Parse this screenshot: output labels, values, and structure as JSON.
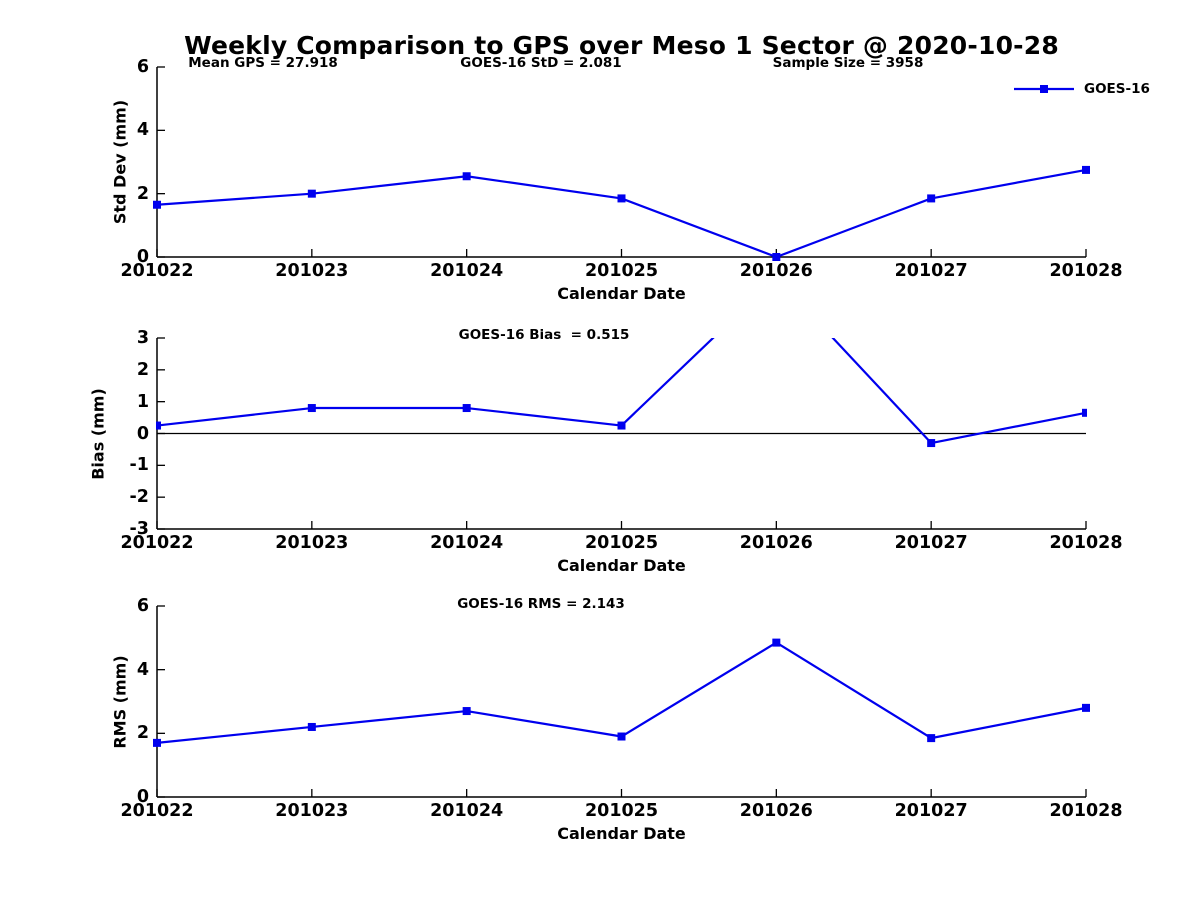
{
  "title": "Weekly Comparison to GPS over Meso 1 Sector @ 2020-10-28",
  "legend": {
    "label": "GOES-16",
    "position": "top-right-of-first-plot"
  },
  "colors": {
    "series": "#0000EE",
    "axis": "#000000",
    "zero_line": "#000000",
    "background": "#ffffff"
  },
  "x_axis": {
    "label": "Calendar Date",
    "ticks": [
      "201022",
      "201023",
      "201024",
      "201025",
      "201026",
      "201027",
      "201028"
    ]
  },
  "chart_data": [
    {
      "type": "line",
      "ylabel": "Std Dev (mm)",
      "xlabel": "Calendar Date",
      "x": [
        "201022",
        "201023",
        "201024",
        "201025",
        "201026",
        "201027",
        "201028"
      ],
      "series": [
        {
          "name": "GOES-16",
          "values": [
            1.65,
            2.0,
            2.55,
            1.85,
            0.0,
            1.85,
            2.75
          ]
        }
      ],
      "annotations": [
        "Mean GPS = 27.918",
        "GOES-16 StD = 2.081",
        "Sample Size = 3958"
      ],
      "ylim": [
        0,
        6
      ],
      "yticks": [
        0,
        2,
        4,
        6
      ],
      "grid": false,
      "legend_visible": true
    },
    {
      "type": "line",
      "ylabel": "Bias (mm)",
      "xlabel": "Calendar Date",
      "x": [
        "201022",
        "201023",
        "201024",
        "201025",
        "201026",
        "201027",
        "201028"
      ],
      "series": [
        {
          "name": "GOES-16",
          "values": [
            0.25,
            0.8,
            0.8,
            0.25,
            4.9,
            -0.3,
            0.65
          ]
        }
      ],
      "annotations": [
        "GOES-16 Bias  = 0.515"
      ],
      "ylim": [
        -3,
        3
      ],
      "yticks": [
        -3,
        -2,
        -1,
        0,
        1,
        2,
        3
      ],
      "zero_line": true,
      "clip_to_ylim": true,
      "grid": false,
      "legend_visible": false
    },
    {
      "type": "line",
      "ylabel": "RMS (mm)",
      "xlabel": "Calendar Date",
      "x": [
        "201022",
        "201023",
        "201024",
        "201025",
        "201026",
        "201027",
        "201028"
      ],
      "series": [
        {
          "name": "GOES-16",
          "values": [
            1.7,
            2.2,
            2.7,
            1.9,
            4.85,
            1.85,
            2.8
          ]
        }
      ],
      "annotations": [
        "GOES-16 RMS = 2.143"
      ],
      "ylim": [
        0,
        6
      ],
      "yticks": [
        0,
        2,
        4,
        6
      ],
      "grid": false,
      "legend_visible": false
    }
  ]
}
